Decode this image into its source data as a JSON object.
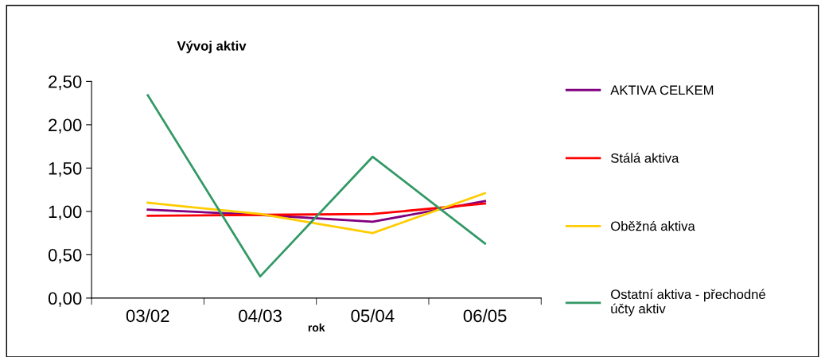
{
  "chart_data": {
    "type": "line",
    "title": "Vývoj aktiv",
    "xlabel": "rok",
    "categories": [
      "03/02",
      "04/03",
      "05/04",
      "06/05"
    ],
    "series": [
      {
        "name": "AKTIVA CELKEM",
        "color": "#800080",
        "values": [
          1.02,
          0.96,
          0.88,
          1.12
        ]
      },
      {
        "name": "Stálá aktiva",
        "color": "#ff0000",
        "values": [
          0.95,
          0.96,
          0.97,
          1.09
        ]
      },
      {
        "name": "Oběžná aktiva",
        "color": "#ffcc00",
        "values": [
          1.1,
          0.97,
          0.75,
          1.21
        ]
      },
      {
        "name": "Ostatní aktiva - přechodné účty aktiv",
        "color": "#339966",
        "values": [
          2.34,
          0.25,
          1.63,
          0.63
        ]
      }
    ],
    "ylim": [
      0,
      2.5
    ],
    "yticks": [
      {
        "value": 0,
        "label": "0,00"
      },
      {
        "value": 0.5,
        "label": "0,50"
      },
      {
        "value": 1,
        "label": "1,00"
      },
      {
        "value": 1.5,
        "label": "1,50"
      },
      {
        "value": 2,
        "label": "2,00"
      },
      {
        "value": 2.5,
        "label": "2,50"
      }
    ],
    "grid": false,
    "legend": "right",
    "marker": "none",
    "line_style": "solid"
  }
}
